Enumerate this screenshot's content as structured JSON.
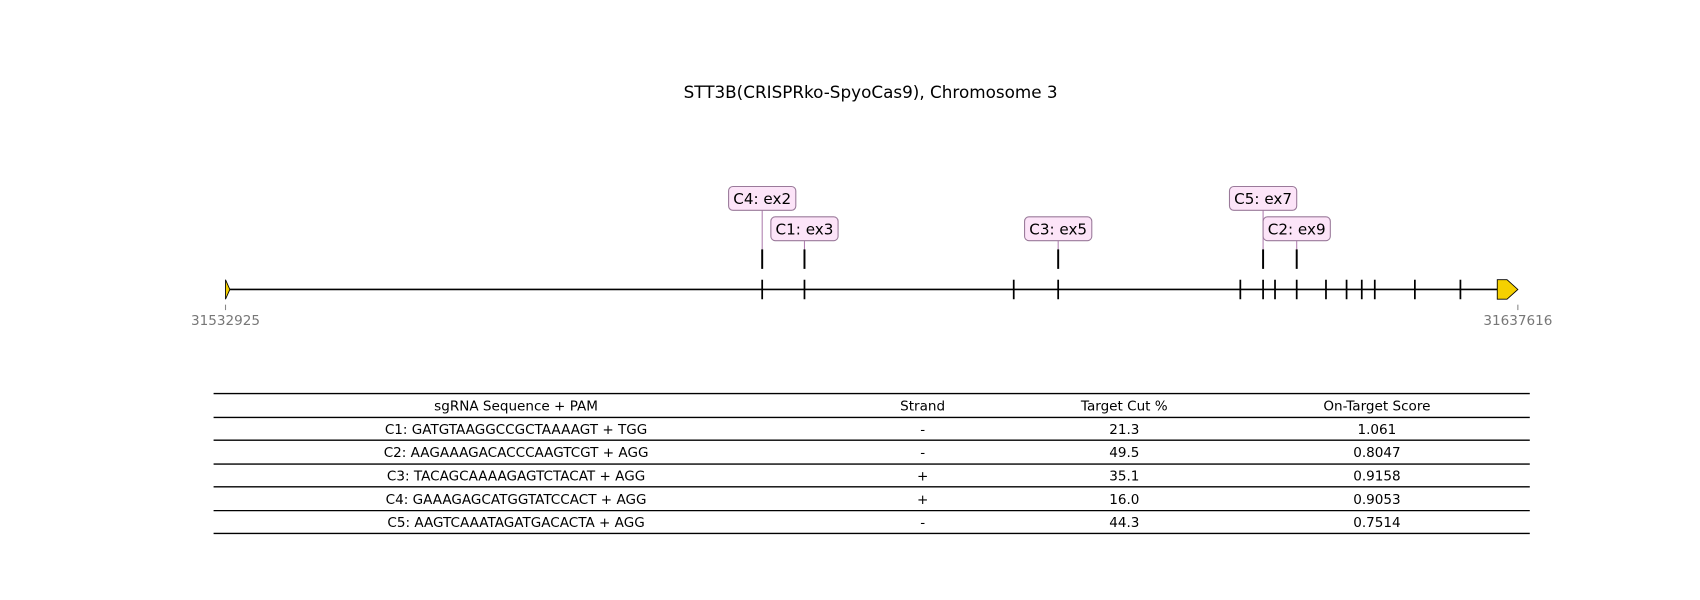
{
  "title": "STT3B(CRISPRko-SpyoCas9), Chromosome 3",
  "track": {
    "start": 31532925,
    "end": 31637616,
    "exons": [
      31576401,
      31579826,
      31596777,
      31600378,
      31615134,
      31616978,
      31617944,
      31619701,
      31622072,
      31623741,
      31624971,
      31626025,
      31629273,
      31632963
    ],
    "guides": [
      {
        "label": "C4: ex2",
        "position": 31576401
      },
      {
        "label": "C1: ex3",
        "position": 31579826
      },
      {
        "label": "C3: ex5",
        "position": 31600378
      },
      {
        "label": "C5: ex7",
        "position": 31616978
      },
      {
        "label": "C2: ex9",
        "position": 31619701
      }
    ]
  },
  "table": {
    "header": [
      "sgRNA Sequence + PAM",
      "Strand",
      "Target Cut %",
      "On-Target Score"
    ],
    "rows": [
      [
        "C1: GATGTAAGGCCGCTAAAAGT + TGG",
        "-",
        "21.3",
        "1.061"
      ],
      [
        "C2: AAGAAAGACACCCAAGTCGT + AGG",
        "-",
        "49.5",
        "0.8047"
      ],
      [
        "C3: TACAGCAAAAGAGTCTACAT + AGG",
        "+",
        "35.1",
        "0.9158"
      ],
      [
        "C4: GAAAGAGCATGGTATCCACT + AGG",
        "+",
        "16.0",
        "0.9053"
      ],
      [
        "C5: AAGTCAAATAGATGACACTA + AGG",
        "-",
        "44.3",
        "0.7514"
      ]
    ]
  }
}
